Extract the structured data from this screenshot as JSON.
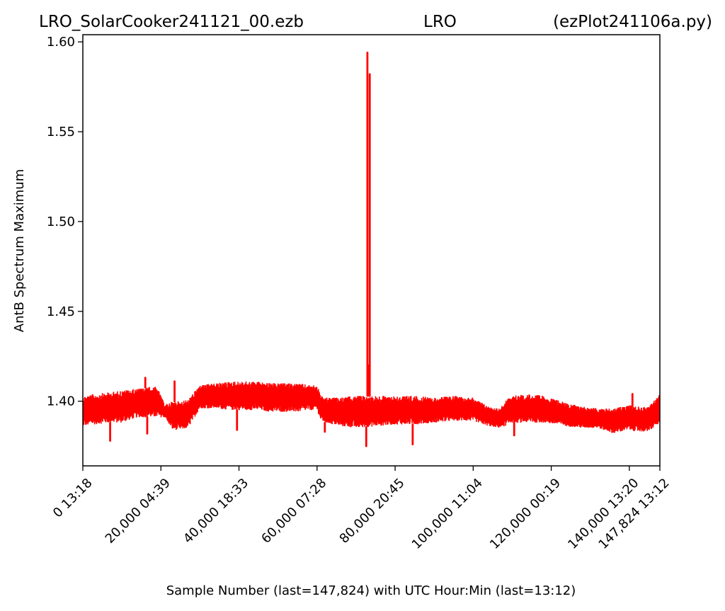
{
  "header": {
    "left": "LRO_SolarCooker241121_00.ezb",
    "center": "LRO",
    "right": "(ezPlot241106a.py)"
  },
  "chart_data": {
    "type": "line",
    "xlabel": "Sample Number (last=147,824) with UTC Hour:Min (last=13:12)",
    "ylabel": "AntB Spectrum Maximum",
    "xlim": [
      0,
      147824
    ],
    "ylim": [
      1.364,
      1.604
    ],
    "grid": false,
    "line_color": "#ff0000",
    "x_ticks": [
      {
        "value": 0,
        "label": "0  13:18"
      },
      {
        "value": 20000,
        "label": "20,000  04:39"
      },
      {
        "value": 40000,
        "label": "40,000  18:33"
      },
      {
        "value": 60000,
        "label": "60,000  07:28"
      },
      {
        "value": 80000,
        "label": "80,000  20:45"
      },
      {
        "value": 100000,
        "label": "100,000  11:04"
      },
      {
        "value": 120000,
        "label": "120,000  00:19"
      },
      {
        "value": 140000,
        "label": "140,000  13:20"
      },
      {
        "value": 147824,
        "label": "147,824  13:12"
      }
    ],
    "y_ticks": [
      {
        "value": 1.4,
        "label": "1.40"
      },
      {
        "value": 1.45,
        "label": "1.45"
      },
      {
        "value": 1.5,
        "label": "1.50"
      },
      {
        "value": 1.55,
        "label": "1.55"
      },
      {
        "value": 1.6,
        "label": "1.60"
      }
    ],
    "series": [
      {
        "band_x": [
          0,
          3000,
          7000,
          10000,
          14000,
          17000,
          19000,
          21000,
          23000,
          25000,
          27000,
          30000,
          34000,
          38000,
          42000,
          45000,
          48000,
          52000,
          55000,
          58000,
          60000,
          61000,
          62000,
          66000,
          70000,
          75000,
          80000,
          85000,
          90000,
          95000,
          100000,
          104000,
          107000,
          108000,
          110000,
          114000,
          118000,
          121000,
          124000,
          128000,
          132000,
          136000,
          140000,
          142000,
          145000,
          147824
        ],
        "band_low": [
          1.386,
          1.387,
          1.388,
          1.388,
          1.391,
          1.391,
          1.391,
          1.391,
          1.384,
          1.384,
          1.385,
          1.396,
          1.396,
          1.395,
          1.395,
          1.395,
          1.394,
          1.394,
          1.394,
          1.395,
          1.395,
          1.389,
          1.388,
          1.386,
          1.385,
          1.386,
          1.387,
          1.387,
          1.388,
          1.389,
          1.389,
          1.386,
          1.385,
          1.386,
          1.388,
          1.388,
          1.388,
          1.387,
          1.386,
          1.385,
          1.385,
          1.382,
          1.384,
          1.383,
          1.383,
          1.388
        ],
        "band_high": [
          1.403,
          1.404,
          1.405,
          1.406,
          1.407,
          1.408,
          1.408,
          1.398,
          1.4,
          1.4,
          1.401,
          1.409,
          1.41,
          1.411,
          1.411,
          1.411,
          1.41,
          1.41,
          1.41,
          1.409,
          1.409,
          1.403,
          1.402,
          1.402,
          1.403,
          1.403,
          1.403,
          1.403,
          1.402,
          1.403,
          1.402,
          1.397,
          1.396,
          1.4,
          1.403,
          1.404,
          1.403,
          1.401,
          1.399,
          1.397,
          1.396,
          1.396,
          1.398,
          1.397,
          1.397,
          1.404
        ],
        "spikes": [
          {
            "x": 7000,
            "y": 1.378
          },
          {
            "x": 16000,
            "y": 1.413
          },
          {
            "x": 16500,
            "y": 1.382
          },
          {
            "x": 23500,
            "y": 1.411
          },
          {
            "x": 39500,
            "y": 1.384
          },
          {
            "x": 62000,
            "y": 1.383
          },
          {
            "x": 72600,
            "y": 1.375
          },
          {
            "x": 72900,
            "y": 1.594
          },
          {
            "x": 73300,
            "y": 1.42
          },
          {
            "x": 73500,
            "y": 1.582
          },
          {
            "x": 84500,
            "y": 1.376
          },
          {
            "x": 110500,
            "y": 1.381
          },
          {
            "x": 140800,
            "y": 1.404
          }
        ]
      }
    ]
  }
}
